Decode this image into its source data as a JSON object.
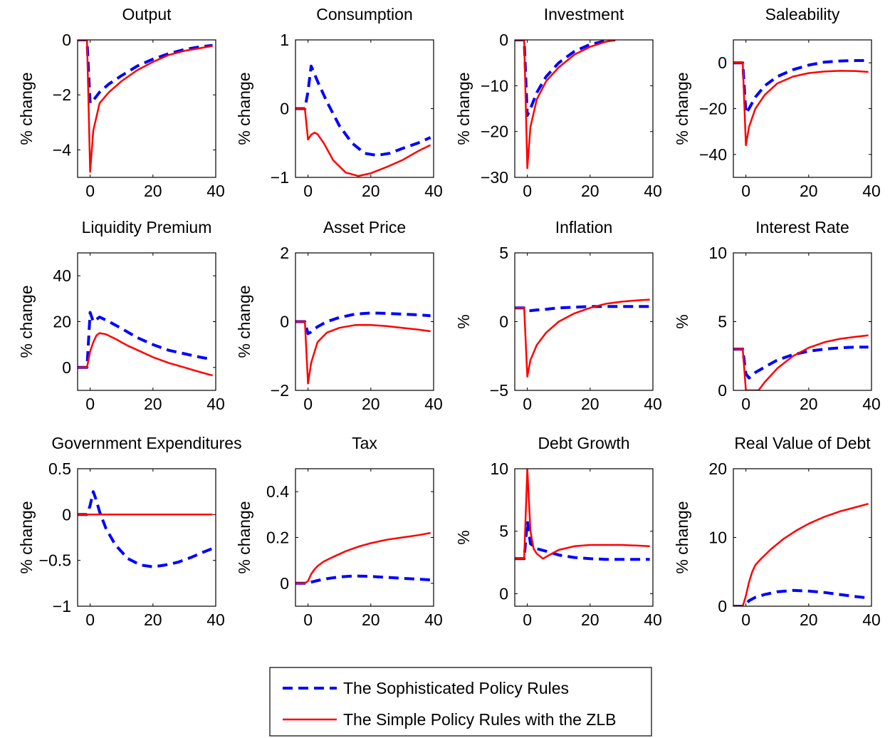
{
  "legend": {
    "entries": [
      {
        "label": "The Sophisticated Policy Rules",
        "color": "#0000ff",
        "style": "dashed"
      },
      {
        "label": "The Simple Policy Rules with the ZLB",
        "color": "#ff0000",
        "style": "solid"
      }
    ]
  },
  "chart_data": [
    {
      "type": "line",
      "title": "Output",
      "ylabel": "% change",
      "xlim": [
        -4,
        40
      ],
      "ylim": [
        -5,
        0
      ],
      "xticks": [
        0,
        20,
        40
      ],
      "yticks": [
        0,
        -2,
        -4
      ],
      "ytick_labels": [
        "0",
        "−2",
        "−4"
      ],
      "series": [
        {
          "name": "The Sophisticated Policy Rules",
          "x": [
            -4,
            -1,
            0,
            1,
            3,
            6,
            10,
            15,
            20,
            25,
            30,
            35,
            39
          ],
          "y": [
            0,
            0,
            -2.3,
            -2.2,
            -1.9,
            -1.6,
            -1.3,
            -0.95,
            -0.7,
            -0.5,
            -0.35,
            -0.25,
            -0.2
          ]
        },
        {
          "name": "The Simple Policy Rules with the ZLB",
          "x": [
            -4,
            -1,
            0,
            1,
            3,
            6,
            10,
            15,
            20,
            25,
            30,
            35,
            39
          ],
          "y": [
            0,
            0,
            -4.8,
            -3.3,
            -2.3,
            -1.9,
            -1.5,
            -1.1,
            -0.8,
            -0.55,
            -0.4,
            -0.3,
            -0.22
          ]
        }
      ]
    },
    {
      "type": "line",
      "title": "Consumption",
      "ylabel": "% change",
      "xlim": [
        -4,
        40
      ],
      "ylim": [
        -1,
        1
      ],
      "xticks": [
        0,
        20,
        40
      ],
      "yticks": [
        1,
        0,
        -1
      ],
      "ytick_labels": [
        "1",
        "0",
        "−1"
      ],
      "series": [
        {
          "name": "The Sophisticated Policy Rules",
          "x": [
            -4,
            -1,
            0,
            1,
            3,
            6,
            10,
            14,
            18,
            22,
            26,
            30,
            35,
            39
          ],
          "y": [
            0,
            0,
            0.25,
            0.62,
            0.4,
            0.1,
            -0.25,
            -0.5,
            -0.65,
            -0.68,
            -0.65,
            -0.58,
            -0.5,
            -0.42
          ]
        },
        {
          "name": "The Simple Policy Rules with the ZLB",
          "x": [
            -4,
            -1,
            0,
            1,
            2,
            3,
            5,
            8,
            12,
            16,
            20,
            25,
            30,
            35,
            39
          ],
          "y": [
            0,
            0,
            -0.45,
            -0.38,
            -0.35,
            -0.37,
            -0.5,
            -0.75,
            -0.93,
            -0.98,
            -0.94,
            -0.85,
            -0.75,
            -0.62,
            -0.53
          ]
        }
      ]
    },
    {
      "type": "line",
      "title": "Investment",
      "ylabel": "% change",
      "xlim": [
        -4,
        40
      ],
      "ylim": [
        -30,
        0
      ],
      "xticks": [
        0,
        20,
        40
      ],
      "yticks": [
        0,
        -10,
        -20,
        -30
      ],
      "ytick_labels": [
        "0",
        "−10",
        "−20",
        "−30"
      ],
      "series": [
        {
          "name": "The Sophisticated Policy Rules",
          "x": [
            -4,
            -1,
            0,
            1,
            3,
            6,
            10,
            15,
            20,
            25,
            28
          ],
          "y": [
            0,
            0,
            -16.5,
            -15,
            -11.5,
            -8,
            -5,
            -2.5,
            -1,
            -0.2,
            0
          ]
        },
        {
          "name": "The Simple Policy Rules with the ZLB",
          "x": [
            -4,
            -1,
            0,
            1,
            3,
            6,
            10,
            15,
            20,
            25,
            28
          ],
          "y": [
            0,
            0,
            -28,
            -19,
            -13,
            -9,
            -6,
            -3.2,
            -1.5,
            -0.4,
            0
          ]
        }
      ]
    },
    {
      "type": "line",
      "title": "Saleability",
      "ylabel": "% change",
      "xlim": [
        -4,
        40
      ],
      "ylim": [
        -50,
        10
      ],
      "xticks": [
        0,
        20,
        40
      ],
      "yticks": [
        0,
        -20,
        -40
      ],
      "ytick_labels": [
        "0",
        "−20",
        "−40"
      ],
      "series": [
        {
          "name": "The Sophisticated Policy Rules",
          "x": [
            -4,
            -1,
            0,
            1,
            3,
            6,
            10,
            15,
            20,
            25,
            30,
            35,
            39
          ],
          "y": [
            0,
            0,
            -22,
            -20,
            -15,
            -10,
            -6,
            -3,
            -1,
            0.3,
            0.8,
            1,
            1
          ]
        },
        {
          "name": "The Simple Policy Rules with the ZLB",
          "x": [
            -4,
            -1,
            0,
            1,
            3,
            6,
            10,
            15,
            20,
            25,
            30,
            35,
            39
          ],
          "y": [
            0,
            0,
            -36,
            -28,
            -20,
            -14,
            -9,
            -6,
            -4.5,
            -3.8,
            -3.5,
            -3.6,
            -4
          ]
        }
      ]
    },
    {
      "type": "line",
      "title": "Liquidity Premium",
      "ylabel": "% change",
      "xlim": [
        -4,
        40
      ],
      "ylim": [
        -10,
        50
      ],
      "xticks": [
        0,
        20,
        40
      ],
      "yticks": [
        0,
        20,
        40
      ],
      "ytick_labels": [
        "0",
        "20",
        "40"
      ],
      "series": [
        {
          "name": "The Sophisticated Policy Rules",
          "x": [
            -4,
            -1,
            0,
            1,
            3,
            6,
            10,
            15,
            20,
            25,
            30,
            35,
            39
          ],
          "y": [
            0,
            0,
            24,
            20,
            22,
            20,
            17,
            13,
            10,
            7.5,
            6,
            4.5,
            3.5
          ]
        },
        {
          "name": "The Simple Policy Rules with the ZLB",
          "x": [
            -4,
            -1,
            0,
            1,
            2,
            3,
            5,
            8,
            12,
            16,
            20,
            25,
            30,
            35,
            39
          ],
          "y": [
            0,
            0,
            7,
            11,
            14,
            15,
            14.5,
            12.5,
            9.5,
            7,
            4.5,
            2,
            0,
            -2,
            -3.5
          ]
        }
      ]
    },
    {
      "type": "line",
      "title": "Asset Price",
      "ylabel": "% change",
      "xlim": [
        -4,
        40
      ],
      "ylim": [
        -2,
        2
      ],
      "xticks": [
        0,
        20,
        40
      ],
      "yticks": [
        2,
        0,
        -2
      ],
      "ytick_labels": [
        "2",
        "0",
        "−2"
      ],
      "series": [
        {
          "name": "The Sophisticated Policy Rules",
          "x": [
            -4,
            -1,
            0,
            1,
            3,
            6,
            10,
            15,
            20,
            25,
            30,
            35,
            39
          ],
          "y": [
            0,
            0,
            -0.35,
            -0.3,
            -0.15,
            0,
            0.12,
            0.22,
            0.25,
            0.24,
            0.22,
            0.2,
            0.17
          ]
        },
        {
          "name": "The Simple Policy Rules with the ZLB",
          "x": [
            -4,
            -1,
            0,
            1,
            3,
            6,
            10,
            15,
            20,
            25,
            30,
            35,
            39
          ],
          "y": [
            0,
            0,
            -1.8,
            -1.2,
            -0.6,
            -0.32,
            -0.18,
            -0.1,
            -0.1,
            -0.13,
            -0.18,
            -0.23,
            -0.28
          ]
        }
      ]
    },
    {
      "type": "line",
      "title": "Inflation",
      "ylabel": "%",
      "xlim": [
        -4,
        40
      ],
      "ylim": [
        -5,
        5
      ],
      "xticks": [
        0,
        20,
        40
      ],
      "yticks": [
        5,
        0,
        -5
      ],
      "ytick_labels": [
        "5",
        "0",
        "−5"
      ],
      "series": [
        {
          "name": "The Sophisticated Policy Rules",
          "x": [
            -4,
            -1,
            0,
            1,
            3,
            6,
            10,
            15,
            20,
            25,
            30,
            35,
            39
          ],
          "y": [
            1,
            1,
            0.8,
            0.8,
            0.85,
            0.9,
            1,
            1.05,
            1.1,
            1.1,
            1.1,
            1.1,
            1.1
          ]
        },
        {
          "name": "The Simple Policy Rules with the ZLB",
          "x": [
            -4,
            -1,
            0,
            1,
            3,
            6,
            10,
            15,
            20,
            25,
            30,
            35,
            39
          ],
          "y": [
            1,
            1,
            -4,
            -2.8,
            -1.7,
            -0.8,
            0,
            0.6,
            1,
            1.3,
            1.45,
            1.55,
            1.6
          ]
        }
      ]
    },
    {
      "type": "line",
      "title": "Interest Rate",
      "ylabel": "%",
      "xlim": [
        -4,
        40
      ],
      "ylim": [
        0,
        10
      ],
      "xticks": [
        0,
        20,
        40
      ],
      "yticks": [
        10,
        5,
        0
      ],
      "ytick_labels": [
        "10",
        "5",
        "0"
      ],
      "series": [
        {
          "name": "The Sophisticated Policy Rules",
          "x": [
            -4,
            -1,
            0,
            1,
            3,
            6,
            10,
            15,
            20,
            25,
            30,
            35,
            39
          ],
          "y": [
            3,
            3,
            1.2,
            0.9,
            1.3,
            1.7,
            2.2,
            2.6,
            2.85,
            3,
            3.1,
            3.15,
            3.15
          ]
        },
        {
          "name": "The Simple Policy Rules with the ZLB",
          "x": [
            -4,
            -1,
            0,
            1,
            3,
            4,
            6,
            8,
            10,
            15,
            20,
            25,
            30,
            35,
            39
          ],
          "y": [
            3,
            3,
            0,
            0,
            0,
            0,
            0.6,
            1.1,
            1.6,
            2.5,
            3.1,
            3.5,
            3.75,
            3.9,
            4
          ]
        }
      ]
    },
    {
      "type": "line",
      "title": "Government Expenditures",
      "ylabel": "% change",
      "xlim": [
        -4,
        40
      ],
      "ylim": [
        -1,
        0.5
      ],
      "xticks": [
        0,
        20,
        40
      ],
      "yticks": [
        0.5,
        0,
        -0.5,
        -1
      ],
      "ytick_labels": [
        "0.5",
        "0",
        "−0.5",
        "−1"
      ],
      "series": [
        {
          "name": "The Sophisticated Policy Rules",
          "x": [
            -4,
            -1,
            0,
            1,
            2,
            3,
            5,
            8,
            12,
            16,
            20,
            24,
            28,
            32,
            36,
            39
          ],
          "y": [
            0,
            0,
            0.1,
            0.25,
            0.15,
            0.03,
            -0.15,
            -0.33,
            -0.48,
            -0.55,
            -0.57,
            -0.55,
            -0.52,
            -0.47,
            -0.41,
            -0.37
          ]
        },
        {
          "name": "The Simple Policy Rules with the ZLB",
          "x": [
            -4,
            39
          ],
          "y": [
            0,
            0
          ]
        }
      ]
    },
    {
      "type": "line",
      "title": "Tax",
      "ylabel": "% change",
      "xlim": [
        -4,
        40
      ],
      "ylim": [
        -0.1,
        0.5
      ],
      "xticks": [
        0,
        20,
        40
      ],
      "yticks": [
        0,
        0.2,
        0.4
      ],
      "ytick_labels": [
        "0",
        "0.2",
        "0.4"
      ],
      "series": [
        {
          "name": "The Sophisticated Policy Rules",
          "x": [
            -4,
            -1,
            0,
            1,
            3,
            6,
            10,
            15,
            20,
            25,
            30,
            35,
            39
          ],
          "y": [
            0,
            0,
            0,
            0.005,
            0.012,
            0.02,
            0.028,
            0.032,
            0.03,
            0.026,
            0.022,
            0.018,
            0.015
          ]
        },
        {
          "name": "The Simple Policy Rules with the ZLB",
          "x": [
            -4,
            -1,
            0,
            1,
            2,
            3,
            5,
            8,
            12,
            16,
            20,
            25,
            30,
            35,
            39
          ],
          "y": [
            0,
            0,
            0.01,
            0.04,
            0.06,
            0.075,
            0.095,
            0.115,
            0.14,
            0.16,
            0.175,
            0.19,
            0.2,
            0.21,
            0.22
          ]
        }
      ]
    },
    {
      "type": "line",
      "title": "Debt Growth",
      "ylabel": "%",
      "xlim": [
        -4,
        40
      ],
      "ylim": [
        -1,
        10
      ],
      "xticks": [
        0,
        20,
        40
      ],
      "yticks": [
        10,
        5,
        0
      ],
      "ytick_labels": [
        "10",
        "5",
        "0"
      ],
      "series": [
        {
          "name": "The Sophisticated Policy Rules",
          "x": [
            -4,
            -1,
            0,
            1,
            3,
            6,
            10,
            15,
            20,
            25,
            30,
            35,
            39
          ],
          "y": [
            2.8,
            2.8,
            5.8,
            4,
            3.6,
            3.4,
            3.1,
            2.9,
            2.8,
            2.75,
            2.75,
            2.75,
            2.75
          ]
        },
        {
          "name": "The Simple Policy Rules with the ZLB",
          "x": [
            -4,
            -1,
            0,
            1,
            2,
            3,
            4,
            5,
            7,
            10,
            15,
            20,
            25,
            30,
            35,
            39
          ],
          "y": [
            2.8,
            2.8,
            10,
            5,
            3.6,
            3.2,
            3,
            2.8,
            3.1,
            3.5,
            3.8,
            3.9,
            3.9,
            3.9,
            3.85,
            3.8
          ]
        }
      ]
    },
    {
      "type": "line",
      "title": "Real Value of Debt",
      "ylabel": "% change",
      "xlim": [
        -4,
        40
      ],
      "ylim": [
        0,
        20
      ],
      "xticks": [
        0,
        20,
        40
      ],
      "yticks": [
        20,
        10,
        0
      ],
      "ytick_labels": [
        "20",
        "10",
        "0"
      ],
      "series": [
        {
          "name": "The Sophisticated Policy Rules",
          "x": [
            -4,
            -1,
            0,
            1,
            3,
            6,
            10,
            15,
            20,
            25,
            30,
            35,
            39
          ],
          "y": [
            0,
            0,
            0.3,
            0.8,
            1.3,
            1.7,
            2.1,
            2.3,
            2.2,
            2,
            1.7,
            1.4,
            1.2
          ]
        },
        {
          "name": "The Simple Policy Rules with the ZLB",
          "x": [
            -4,
            -1,
            0,
            1,
            2,
            3,
            5,
            8,
            12,
            16,
            20,
            25,
            30,
            35,
            39
          ],
          "y": [
            0,
            0,
            1.5,
            3.5,
            5,
            6,
            7,
            8.3,
            9.8,
            11,
            12,
            13,
            13.8,
            14.4,
            14.9
          ]
        }
      ]
    }
  ]
}
